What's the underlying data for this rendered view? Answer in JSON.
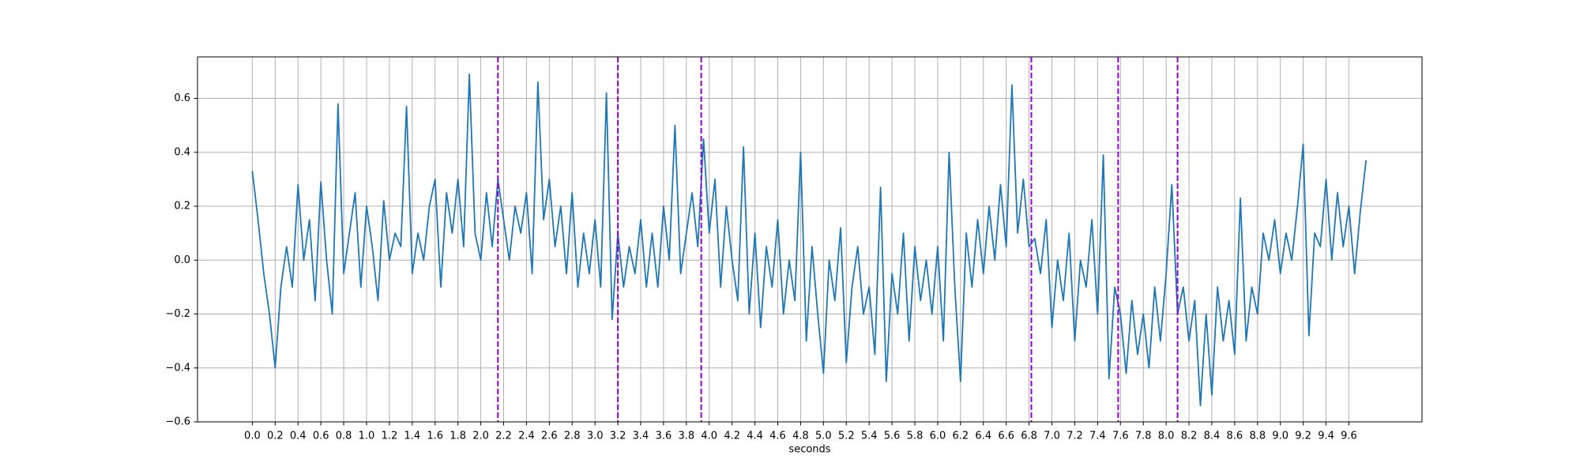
{
  "chart_data": {
    "type": "line",
    "xlabel": "seconds",
    "color": "#1f77b4",
    "x": [
      0,
      0.05,
      0.1,
      0.15,
      0.2,
      0.25,
      0.3,
      0.35,
      0.4,
      0.45,
      0.5,
      0.55,
      0.6,
      0.65,
      0.7,
      0.75,
      0.8,
      0.85,
      0.9,
      0.95,
      1,
      1.05,
      1.1,
      1.15,
      1.2,
      1.25,
      1.3,
      1.35,
      1.4,
      1.45,
      1.5,
      1.55,
      1.6,
      1.65,
      1.7,
      1.75,
      1.8,
      1.85,
      1.9,
      1.95,
      2,
      2.05,
      2.1,
      2.15,
      2.2,
      2.25,
      2.3,
      2.35,
      2.4,
      2.45,
      2.5,
      2.55,
      2.6,
      2.65,
      2.7,
      2.75,
      2.8,
      2.85,
      2.9,
      2.95,
      3,
      3.05,
      3.1,
      3.15,
      3.2,
      3.25,
      3.3,
      3.35,
      3.4,
      3.45,
      3.5,
      3.55,
      3.6,
      3.65,
      3.7,
      3.75,
      3.8,
      3.85,
      3.9,
      3.95,
      4,
      4.05,
      4.1,
      4.15,
      4.2,
      4.25,
      4.3,
      4.35,
      4.4,
      4.45,
      4.5,
      4.55,
      4.6,
      4.65,
      4.7,
      4.75,
      4.8,
      4.85,
      4.9,
      4.95,
      5,
      5.05,
      5.1,
      5.15,
      5.2,
      5.25,
      5.3,
      5.35,
      5.4,
      5.45,
      5.5,
      5.55,
      5.6,
      5.65,
      5.7,
      5.75,
      5.8,
      5.85,
      5.9,
      5.95,
      6,
      6.05,
      6.1,
      6.15,
      6.2,
      6.25,
      6.3,
      6.35,
      6.4,
      6.45,
      6.5,
      6.55,
      6.6,
      6.65,
      6.7,
      6.75,
      6.8,
      6.85,
      6.9,
      6.95,
      7,
      7.05,
      7.1,
      7.15,
      7.2,
      7.25,
      7.3,
      7.35,
      7.4,
      7.45,
      7.5,
      7.55,
      7.6,
      7.65,
      7.7,
      7.75,
      7.8,
      7.85,
      7.9,
      7.95,
      8,
      8.05,
      8.1,
      8.15,
      8.2,
      8.25,
      8.3,
      8.35,
      8.4,
      8.45,
      8.5,
      8.55,
      8.6,
      8.65,
      8.7,
      8.75,
      8.8,
      8.85,
      8.9,
      8.95,
      9,
      9.05,
      9.1,
      9.15,
      9.2,
      9.25,
      9.3,
      9.35,
      9.4,
      9.45,
      9.5,
      9.55,
      9.6,
      9.65,
      9.7,
      9.75
    ],
    "values": [
      0.33,
      0.15,
      -0.05,
      -0.2,
      -0.4,
      -0.1,
      0.05,
      -0.1,
      0.28,
      0.0,
      0.15,
      -0.15,
      0.29,
      0.0,
      -0.2,
      0.58,
      -0.05,
      0.1,
      0.25,
      -0.1,
      0.2,
      0.05,
      -0.15,
      0.22,
      0.0,
      0.1,
      0.05,
      0.57,
      -0.05,
      0.1,
      0.0,
      0.2,
      0.3,
      -0.1,
      0.25,
      0.1,
      0.3,
      0.05,
      0.69,
      0.1,
      0.0,
      0.25,
      0.05,
      0.3,
      0.15,
      0.0,
      0.2,
      0.1,
      0.25,
      -0.05,
      0.66,
      0.15,
      0.3,
      0.05,
      0.2,
      -0.05,
      0.25,
      -0.1,
      0.1,
      -0.05,
      0.15,
      -0.1,
      0.62,
      -0.22,
      0.1,
      -0.1,
      0.05,
      -0.05,
      0.15,
      -0.1,
      0.1,
      -0.1,
      0.2,
      0.0,
      0.5,
      -0.05,
      0.1,
      0.25,
      0.05,
      0.45,
      0.1,
      0.3,
      -0.1,
      0.2,
      0.0,
      -0.15,
      0.42,
      -0.2,
      0.1,
      -0.25,
      0.05,
      -0.1,
      0.15,
      -0.2,
      0.0,
      -0.15,
      0.4,
      -0.3,
      0.05,
      -0.2,
      -0.42,
      0.0,
      -0.15,
      0.12,
      -0.38,
      -0.1,
      0.05,
      -0.2,
      -0.1,
      -0.35,
      0.27,
      -0.45,
      -0.05,
      -0.2,
      0.1,
      -0.3,
      0.05,
      -0.15,
      0.0,
      -0.2,
      0.05,
      -0.3,
      0.4,
      -0.1,
      -0.45,
      0.1,
      -0.1,
      0.15,
      -0.05,
      0.2,
      0.0,
      0.28,
      0.05,
      0.65,
      0.1,
      0.3,
      0.05,
      0.08,
      -0.05,
      0.15,
      -0.25,
      0.0,
      -0.15,
      0.1,
      -0.3,
      0.0,
      -0.1,
      0.15,
      -0.2,
      0.39,
      -0.44,
      -0.1,
      -0.2,
      -0.42,
      -0.15,
      -0.35,
      -0.2,
      -0.4,
      -0.1,
      -0.3,
      -0.05,
      0.28,
      -0.2,
      -0.1,
      -0.3,
      -0.15,
      -0.54,
      -0.2,
      -0.5,
      -0.1,
      -0.3,
      -0.15,
      -0.35,
      0.23,
      -0.3,
      -0.1,
      -0.2,
      0.1,
      0.0,
      0.15,
      -0.05,
      0.1,
      0.0,
      0.2,
      0.43,
      -0.28,
      0.1,
      0.05,
      0.3,
      0.0,
      0.25,
      0.05,
      0.2,
      -0.05,
      0.18,
      0.37
    ],
    "vlines": [
      2.15,
      3.2,
      3.93,
      6.82,
      7.58,
      8.1
    ],
    "vline_color": "darkviolet",
    "xlim": [
      -0.48,
      10.24
    ],
    "ylim": [
      -0.6,
      0.754
    ],
    "xticks": [
      {
        "value": 0,
        "label": "0.0"
      },
      0.2,
      0.4,
      0.6,
      0.8,
      {
        "value": 1,
        "label": "1.0"
      },
      1.2,
      1.4,
      1.6,
      1.8,
      {
        "value": 2,
        "label": "2.0"
      },
      2.2,
      2.4,
      2.6,
      2.8,
      {
        "value": 3,
        "label": "3.0"
      },
      3.2,
      3.4,
      3.6,
      3.8,
      {
        "value": 4,
        "label": "4.0"
      },
      4.2,
      4.4,
      4.6,
      4.8,
      {
        "value": 5,
        "label": "5.0"
      },
      5.2,
      5.4,
      5.6,
      5.8,
      {
        "value": 6,
        "label": "6.0"
      },
      6.2,
      6.4,
      6.6,
      6.8,
      {
        "value": 7,
        "label": "7.0"
      },
      7.2,
      7.4,
      7.6,
      7.8,
      {
        "value": 8,
        "label": "8.0"
      },
      8.2,
      8.4,
      8.6,
      8.8,
      {
        "value": 9,
        "label": "9.0"
      },
      9.2,
      9.4,
      9.6
    ],
    "yticks": [
      {
        "value": -0.6,
        "label": "−0.6"
      },
      {
        "value": -0.4,
        "label": "−0.4"
      },
      {
        "value": -0.2,
        "label": "−0.2"
      },
      {
        "value": 0,
        "label": "0.0"
      },
      0.2,
      0.4,
      0.6
    ],
    "grid": true
  }
}
